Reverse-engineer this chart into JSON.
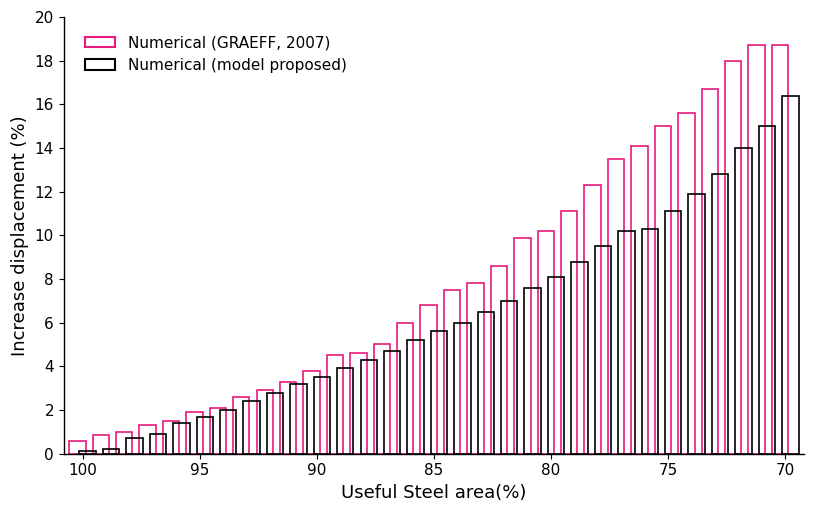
{
  "title": "",
  "xlabel": "Useful Steel area(%)",
  "ylabel": "Increase displacement (%)",
  "xlim_left": 100.8,
  "xlim_right": 69.2,
  "ylim": [
    0,
    20
  ],
  "xticks": [
    100,
    95,
    90,
    85,
    80,
    75,
    70
  ],
  "yticks": [
    0,
    2,
    4,
    6,
    8,
    10,
    12,
    14,
    16,
    18,
    20
  ],
  "x_values": [
    100,
    99,
    98,
    97,
    96,
    95,
    94,
    93,
    92,
    91,
    90,
    89,
    88,
    87,
    86,
    85,
    84,
    83,
    82,
    81,
    80,
    79,
    78,
    77,
    76,
    75,
    74,
    73,
    72,
    71,
    70
  ],
  "graeff_values": [
    0.6,
    0.85,
    1.0,
    1.3,
    1.5,
    1.9,
    2.1,
    2.6,
    2.9,
    3.3,
    3.8,
    4.5,
    4.6,
    5.0,
    6.0,
    6.8,
    7.5,
    7.8,
    8.6,
    9.9,
    10.2,
    11.1,
    12.3,
    13.5,
    14.1,
    15.0,
    15.6,
    16.7,
    18.0,
    18.7,
    18.7
  ],
  "model_values": [
    0.1,
    0.2,
    0.7,
    0.9,
    1.4,
    1.7,
    2.0,
    2.4,
    2.8,
    3.2,
    3.5,
    3.9,
    4.3,
    4.7,
    5.2,
    5.6,
    6.0,
    6.5,
    7.0,
    7.6,
    8.1,
    8.8,
    9.5,
    10.2,
    10.3,
    11.1,
    11.9,
    12.8,
    14.0,
    15.0,
    16.4
  ],
  "graeff_color": "#E8197C",
  "model_color": "#000000",
  "background_color": "#ffffff",
  "legend_label_graeff": "Numerical (GRAEFF, 2007)",
  "legend_label_model": "Numerical (model proposed)",
  "fontsize_labels": 13,
  "fontsize_ticks": 11,
  "fontsize_legend": 11,
  "linewidth": 1.2
}
